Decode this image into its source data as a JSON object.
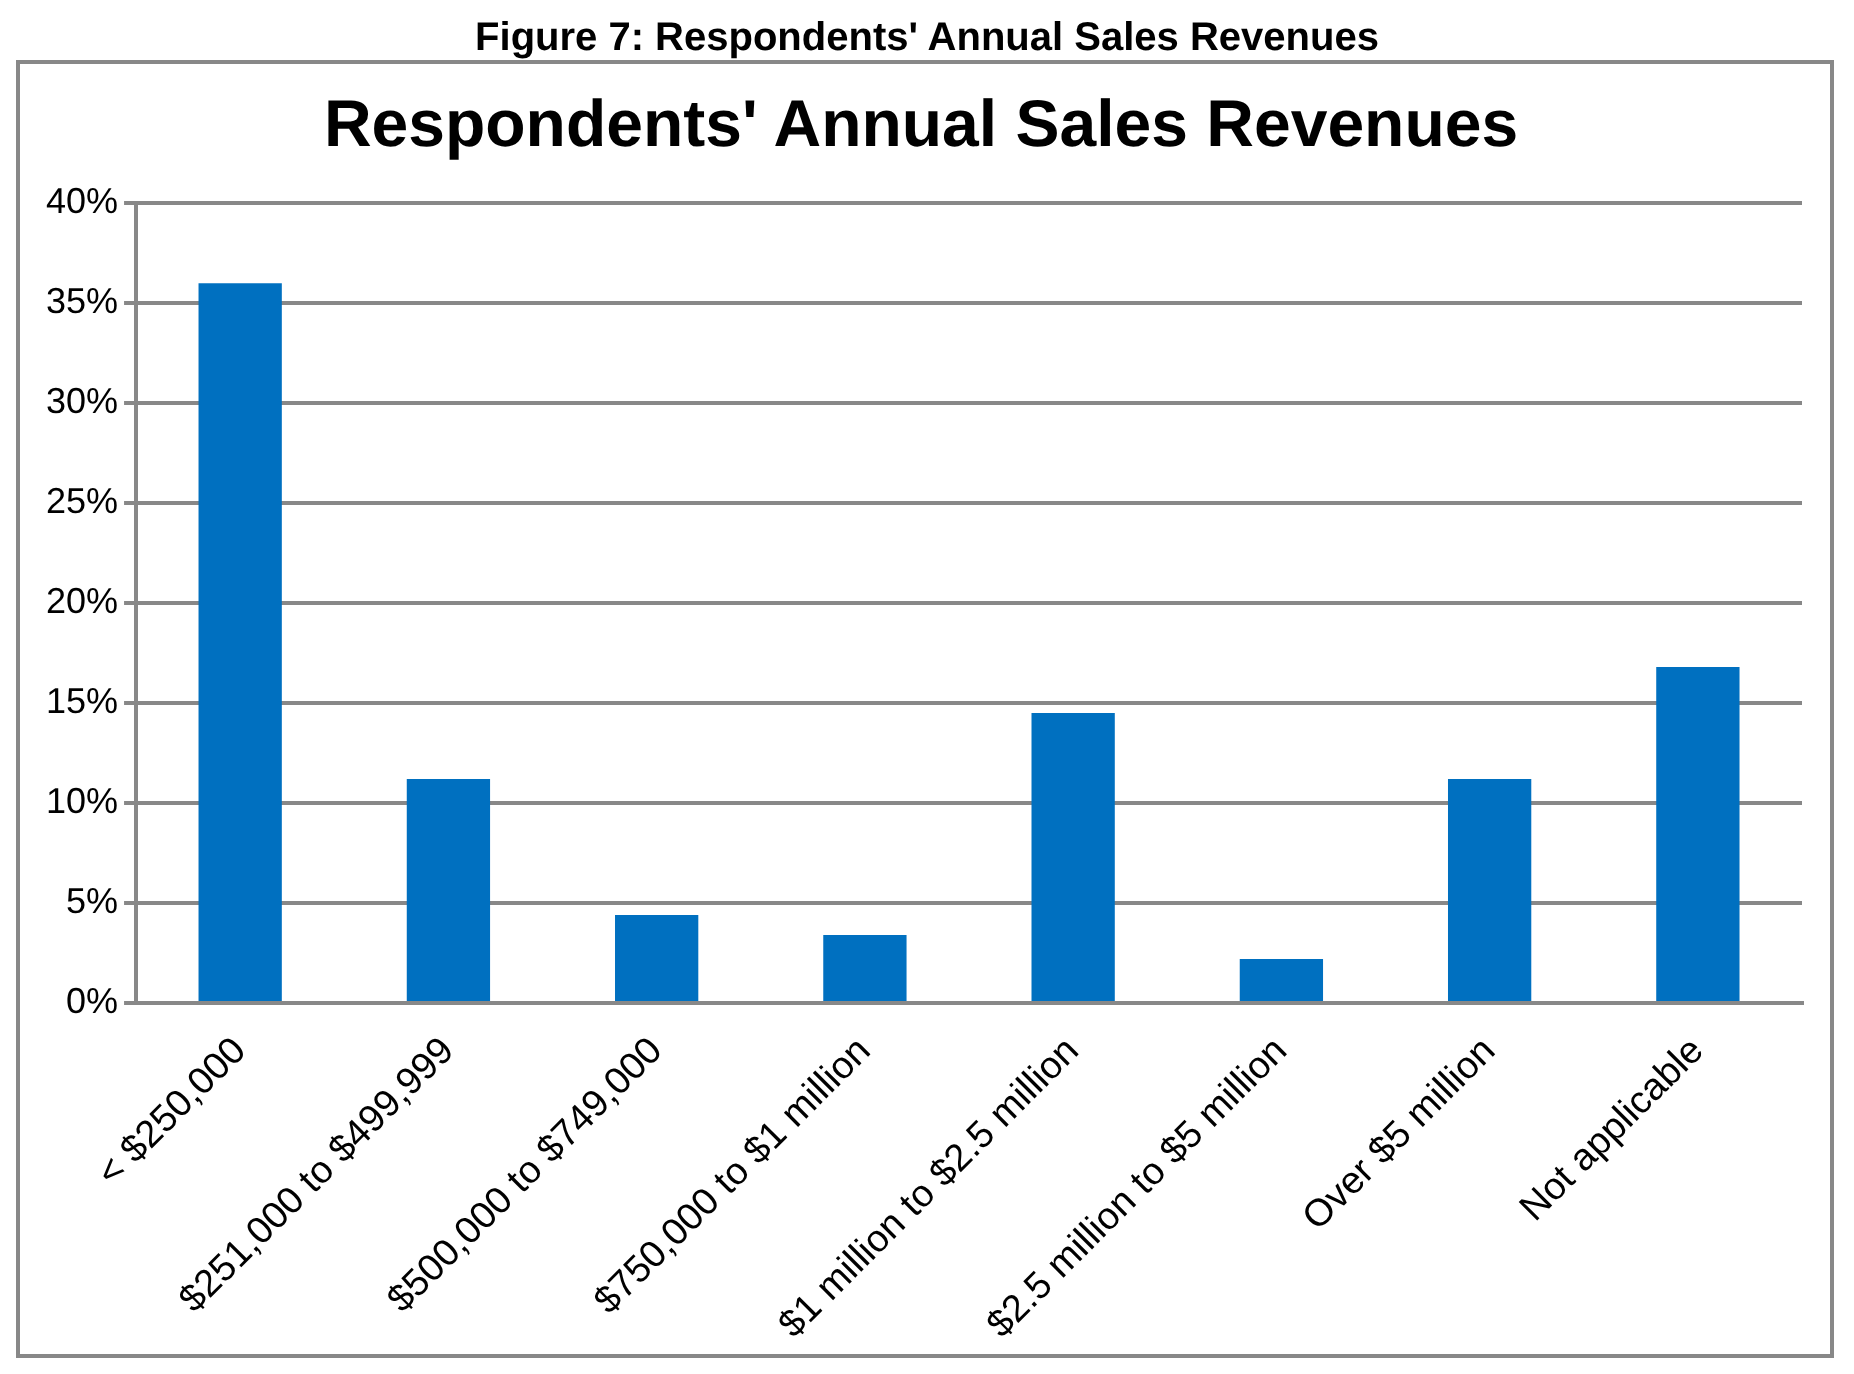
{
  "chart_data": {
    "type": "bar",
    "title": "Respondents' Annual Sales Revenues",
    "annotations": [
      "Figure 7: Respondents' Annual Sales Revenues"
    ],
    "categories": [
      "< $250,000",
      "$251,000 to $499,999",
      "$500,000 to $749,000",
      "$750,000 to $1 million",
      "$1 million to $2.5 million",
      "$2.5 million to $5 million",
      "Over $5 million",
      "Not applicable"
    ],
    "values": [
      36,
      11.2,
      4.4,
      3.4,
      14.5,
      2.2,
      11.2,
      16.8
    ],
    "color": "#0070c0",
    "ylim": [
      0,
      40
    ],
    "yticks": [
      {
        "value": 0,
        "label": "0%"
      },
      {
        "value": 5,
        "label": "5%"
      },
      {
        "value": 10,
        "label": "10%"
      },
      {
        "value": 15,
        "label": "15%"
      },
      {
        "value": 20,
        "label": "20%"
      },
      {
        "value": 25,
        "label": "25%"
      },
      {
        "value": 30,
        "label": "30%"
      },
      {
        "value": 35,
        "label": "35%"
      },
      {
        "value": 40,
        "label": "40%"
      }
    ],
    "grid": "y",
    "legend": false
  }
}
